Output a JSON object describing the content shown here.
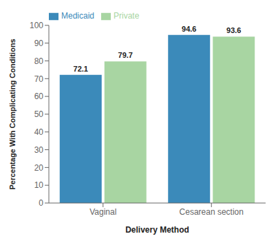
{
  "chart_data": {
    "type": "bar",
    "categories": [
      "Vaginal",
      "Cesarean section"
    ],
    "series": [
      {
        "name": "Medicaid",
        "color": "#3b8aba",
        "values": [
          72.1,
          94.6
        ]
      },
      {
        "name": "Private",
        "color": "#a8d5a2",
        "values": [
          79.7,
          93.6
        ]
      }
    ],
    "xlabel": "Delivery Method",
    "ylabel": "Percentage With Complicating Conditions",
    "ylim": [
      0,
      100
    ],
    "yticks": [
      0,
      10,
      20,
      30,
      40,
      50,
      60,
      70,
      80,
      90,
      100
    ],
    "grid": false,
    "legend": "upper left",
    "data_labels": true
  }
}
